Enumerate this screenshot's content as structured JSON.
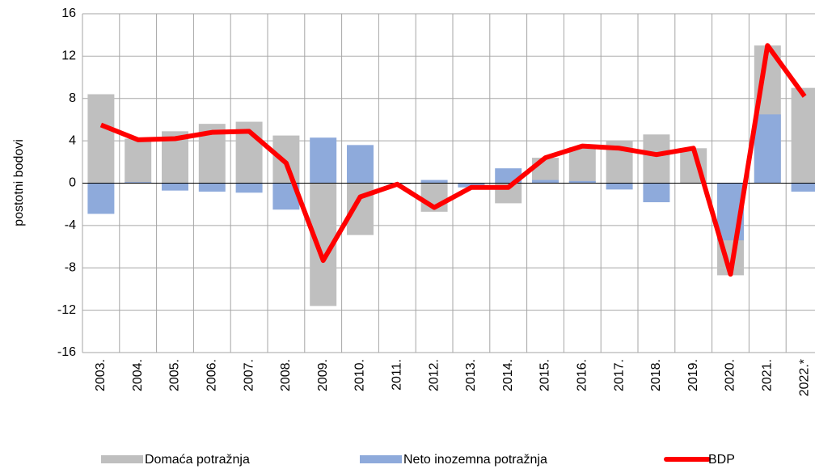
{
  "chart_data": {
    "type": "bar_line",
    "y_label": "postotni bodovi",
    "categories": [
      "2003.",
      "2004.",
      "2005.",
      "2006.",
      "2007.",
      "2008.",
      "2009.",
      "2010.",
      "2011.",
      "2012.",
      "2013.",
      "2014.",
      "2015.",
      "2016.",
      "2017.",
      "2018.",
      "2019.",
      "2020.",
      "2021.",
      "2022.*"
    ],
    "series": [
      {
        "name": "Domaća potražnja",
        "color": "#bfbfbf",
        "kind": "bar",
        "values": [
          8.4,
          4.2,
          4.9,
          5.6,
          5.8,
          4.5,
          -11.6,
          -4.9,
          -0.1,
          -2.7,
          -0.3,
          -1.9,
          2.4,
          3.4,
          4.0,
          4.6,
          3.3,
          -8.7,
          13.0,
          9.0
        ]
      },
      {
        "name": "Neto inozemna potražnja",
        "color": "#8eaadb",
        "kind": "bar",
        "values": [
          -2.9,
          0.1,
          -0.7,
          -0.8,
          -0.9,
          -2.5,
          4.3,
          3.6,
          0,
          0.3,
          -0.4,
          1.4,
          0.3,
          0.2,
          -0.6,
          -1.8,
          0,
          -5.4,
          6.5,
          -0.8
        ]
      },
      {
        "name": "BDP",
        "color": "#ff0000",
        "kind": "line",
        "values": [
          5.5,
          4.1,
          4.2,
          4.8,
          4.9,
          1.9,
          -7.3,
          -1.3,
          -0.1,
          -2.3,
          -0.4,
          -0.4,
          2.4,
          3.5,
          3.3,
          2.7,
          3.3,
          -8.6,
          13.0,
          8.2
        ]
      }
    ],
    "ylim": [
      -16,
      16
    ],
    "yticks": [
      -16,
      -12,
      -8,
      -4,
      0,
      4,
      8,
      12,
      16
    ],
    "grid": true,
    "legend": "bottom"
  }
}
